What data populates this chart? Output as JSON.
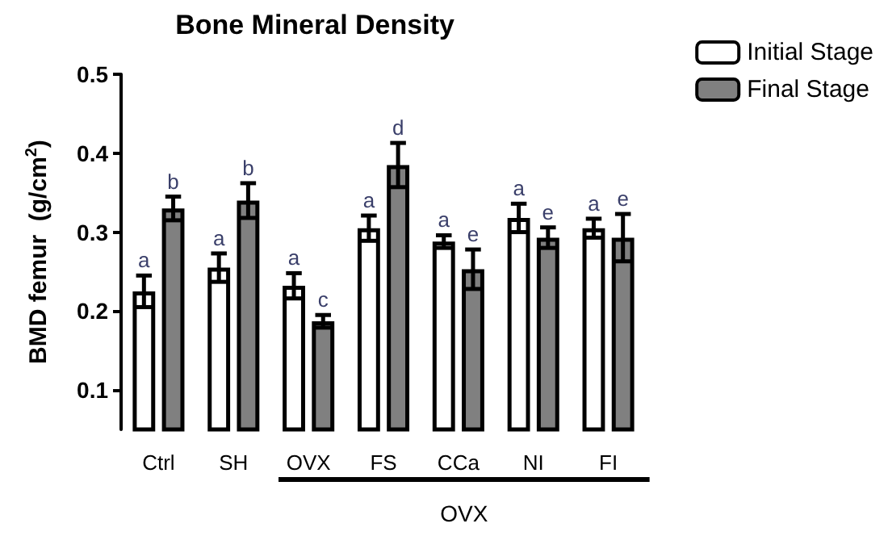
{
  "chart_data": {
    "type": "bar",
    "title": "Bone Mineral Density",
    "ylabel": "BMD femur  (g/cm$^{2}$)",
    "categories": [
      "Ctrl",
      "SH",
      "OVX",
      "FS",
      "CCa",
      "NI",
      "FI"
    ],
    "series": [
      {
        "name": "Initial Stage",
        "color": "#ffffff",
        "values": [
          0.225,
          0.255,
          0.232,
          0.305,
          0.288,
          0.318,
          0.305
        ],
        "errors": [
          0.02,
          0.018,
          0.016,
          0.016,
          0.008,
          0.018,
          0.012
        ],
        "value_labels": [
          "a",
          "a",
          "a",
          "a",
          "a",
          "a",
          "a"
        ]
      },
      {
        "name": "Final Stage",
        "color": "#808080",
        "values": [
          0.33,
          0.34,
          0.187,
          0.385,
          0.253,
          0.293,
          0.293
        ],
        "errors": [
          0.015,
          0.022,
          0.008,
          0.028,
          0.025,
          0.013,
          0.03
        ],
        "value_labels": [
          "b",
          "b",
          "c",
          "d",
          "e",
          "e",
          "e"
        ]
      }
    ],
    "ylim": [
      0.05,
      0.5
    ],
    "yticks": [
      0.1,
      0.2,
      0.3,
      0.4,
      0.5
    ],
    "grid": false,
    "legend": "top right",
    "annotations": [
      "OVX"
    ]
  }
}
